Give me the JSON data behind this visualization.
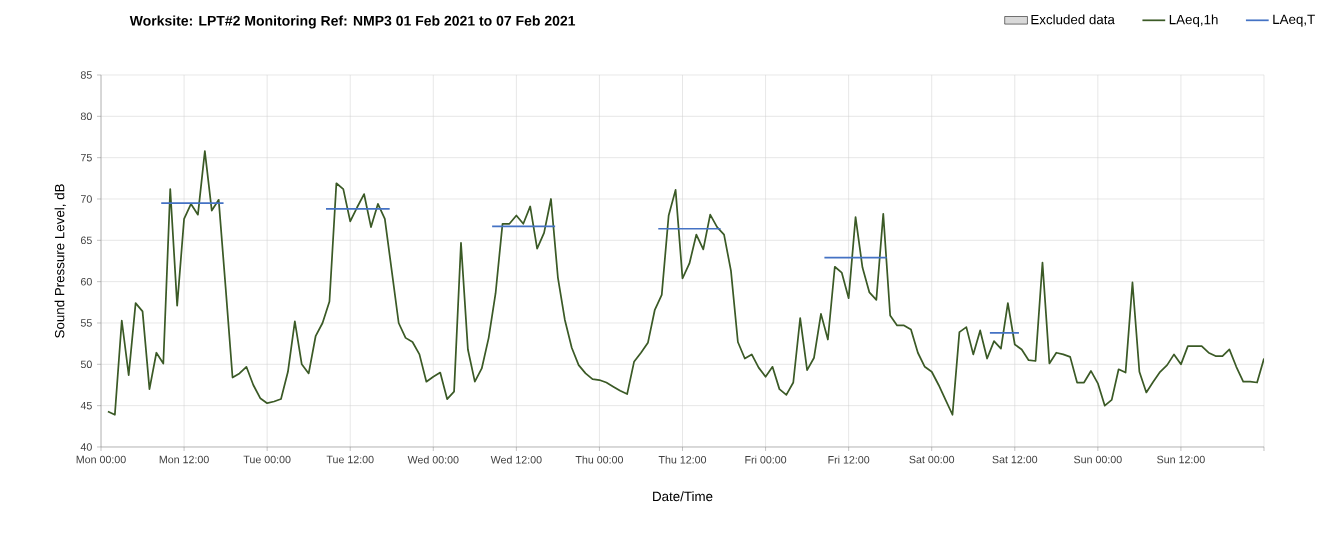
{
  "chart_data": {
    "type": "line",
    "title": "Worksite: LPT#2   Monitoring Ref: NMP3   01 Feb 2021 to 07 Feb 2021",
    "xlabel": "Date/Time",
    "ylabel": "Sound Pressure Level, dB",
    "x": [
      "2021-02-01T01:00",
      "2021-02-01T02:00",
      "2021-02-01T03:00",
      "2021-02-01T04:00",
      "2021-02-01T05:00",
      "2021-02-01T06:00",
      "2021-02-01T07:00",
      "2021-02-01T08:00",
      "2021-02-01T09:00",
      "2021-02-01T10:00",
      "2021-02-01T11:00",
      "2021-02-01T12:00",
      "2021-02-01T13:00",
      "2021-02-01T14:00",
      "2021-02-01T15:00",
      "2021-02-01T16:00",
      "2021-02-01T17:00",
      "2021-02-01T18:00",
      "2021-02-01T19:00",
      "2021-02-01T20:00",
      "2021-02-01T21:00",
      "2021-02-01T22:00",
      "2021-02-01T23:00",
      "2021-02-02T00:00",
      "2021-02-02T01:00",
      "2021-02-02T02:00",
      "2021-02-02T03:00",
      "2021-02-02T04:00",
      "2021-02-02T05:00",
      "2021-02-02T06:00",
      "2021-02-02T07:00",
      "2021-02-02T08:00",
      "2021-02-02T09:00",
      "2021-02-02T10:00",
      "2021-02-02T11:00",
      "2021-02-02T12:00",
      "2021-02-02T13:00",
      "2021-02-02T14:00",
      "2021-02-02T15:00",
      "2021-02-02T16:00",
      "2021-02-02T17:00",
      "2021-02-02T18:00",
      "2021-02-02T19:00",
      "2021-02-02T20:00",
      "2021-02-02T21:00",
      "2021-02-02T22:00",
      "2021-02-02T23:00",
      "2021-02-03T00:00",
      "2021-02-03T01:00",
      "2021-02-03T02:00",
      "2021-02-03T03:00",
      "2021-02-03T04:00",
      "2021-02-03T05:00",
      "2021-02-03T06:00",
      "2021-02-03T07:00",
      "2021-02-03T08:00",
      "2021-02-03T09:00",
      "2021-02-03T10:00",
      "2021-02-03T11:00",
      "2021-02-03T12:00",
      "2021-02-03T13:00",
      "2021-02-03T14:00",
      "2021-02-03T15:00",
      "2021-02-03T16:00",
      "2021-02-03T17:00",
      "2021-02-03T18:00",
      "2021-02-03T19:00",
      "2021-02-03T20:00",
      "2021-02-03T21:00",
      "2021-02-03T22:00",
      "2021-02-03T23:00",
      "2021-02-04T00:00",
      "2021-02-04T01:00",
      "2021-02-04T02:00",
      "2021-02-04T03:00",
      "2021-02-04T04:00",
      "2021-02-04T05:00",
      "2021-02-04T06:00",
      "2021-02-04T07:00",
      "2021-02-04T08:00",
      "2021-02-04T09:00",
      "2021-02-04T10:00",
      "2021-02-04T11:00",
      "2021-02-04T12:00",
      "2021-02-04T13:00",
      "2021-02-04T14:00",
      "2021-02-04T15:00",
      "2021-02-04T16:00",
      "2021-02-04T17:00",
      "2021-02-04T18:00",
      "2021-02-04T19:00",
      "2021-02-04T20:00",
      "2021-02-04T21:00",
      "2021-02-04T22:00",
      "2021-02-04T23:00",
      "2021-02-05T00:00",
      "2021-02-05T01:00",
      "2021-02-05T02:00",
      "2021-02-05T03:00",
      "2021-02-05T04:00",
      "2021-02-05T05:00",
      "2021-02-05T06:00",
      "2021-02-05T07:00",
      "2021-02-05T08:00",
      "2021-02-05T09:00",
      "2021-02-05T10:00",
      "2021-02-05T11:00",
      "2021-02-05T12:00",
      "2021-02-05T13:00",
      "2021-02-05T14:00",
      "2021-02-05T15:00",
      "2021-02-05T16:00",
      "2021-02-05T17:00",
      "2021-02-05T18:00",
      "2021-02-05T19:00",
      "2021-02-05T20:00",
      "2021-02-05T21:00",
      "2021-02-05T22:00",
      "2021-02-05T23:00",
      "2021-02-06T00:00",
      "2021-02-06T01:00",
      "2021-02-06T02:00",
      "2021-02-06T03:00",
      "2021-02-06T04:00",
      "2021-02-06T05:00",
      "2021-02-06T06:00",
      "2021-02-06T07:00",
      "2021-02-06T08:00",
      "2021-02-06T09:00",
      "2021-02-06T10:00",
      "2021-02-06T11:00",
      "2021-02-06T12:00",
      "2021-02-06T13:00",
      "2021-02-06T14:00",
      "2021-02-06T15:00",
      "2021-02-06T16:00",
      "2021-02-06T17:00",
      "2021-02-06T18:00",
      "2021-02-06T19:00",
      "2021-02-06T20:00",
      "2021-02-06T21:00",
      "2021-02-06T22:00",
      "2021-02-06T23:00",
      "2021-02-07T00:00",
      "2021-02-07T01:00",
      "2021-02-07T02:00",
      "2021-02-07T03:00",
      "2021-02-07T04:00",
      "2021-02-07T05:00",
      "2021-02-07T06:00",
      "2021-02-07T07:00",
      "2021-02-07T08:00",
      "2021-02-07T09:00",
      "2021-02-07T10:00",
      "2021-02-07T11:00",
      "2021-02-07T12:00",
      "2021-02-07T13:00",
      "2021-02-07T14:00",
      "2021-02-07T15:00",
      "2021-02-07T16:00",
      "2021-02-07T17:00",
      "2021-02-07T18:00",
      "2021-02-07T19:00",
      "2021-02-07T20:00",
      "2021-02-07T21:00",
      "2021-02-07T22:00",
      "2021-02-07T23:00",
      "2021-02-08T00:00"
    ],
    "series": [
      {
        "name": "Excluded data",
        "type": "area",
        "color": "#d9d9d9",
        "values": [
          null,
          null,
          null,
          null,
          null,
          null,
          null,
          null,
          null,
          null,
          null,
          null,
          null,
          null,
          null,
          null,
          null,
          null,
          null,
          null,
          null,
          null,
          null,
          null,
          null,
          null,
          null,
          null,
          null,
          null,
          null,
          null,
          null,
          null,
          null,
          null,
          null,
          null,
          null,
          null,
          null,
          null,
          null,
          null,
          null,
          null,
          null,
          null,
          null,
          null,
          null,
          null,
          null,
          null,
          null,
          null,
          null,
          null,
          null,
          null,
          null,
          null,
          null,
          null,
          null,
          null,
          null,
          null,
          null,
          null,
          null,
          null,
          null,
          null,
          null,
          null,
          null,
          null,
          null,
          null,
          null,
          null,
          null,
          null,
          null,
          null,
          null,
          null,
          null,
          null,
          null,
          null,
          null,
          null,
          null,
          null,
          null,
          null,
          null,
          null,
          null,
          null,
          null,
          null,
          null,
          null,
          null,
          null,
          null,
          null,
          null,
          null,
          null,
          null,
          null,
          null,
          null,
          null,
          null,
          null,
          null,
          null,
          null,
          null,
          null,
          null,
          null,
          null,
          null,
          null,
          null,
          null,
          null,
          null,
          null,
          null,
          null,
          null,
          null,
          null,
          null,
          null,
          null,
          null,
          null,
          null,
          null,
          null,
          null,
          null,
          null,
          null,
          null,
          null,
          null,
          null,
          null,
          null,
          null,
          null,
          null,
          null,
          null,
          null,
          null,
          null,
          null,
          null
        ]
      },
      {
        "name": "LAeq,1h",
        "color": "#3b5a26",
        "values": [
          44.3,
          43.9,
          55.3,
          48.7,
          57.4,
          56.4,
          47.0,
          51.4,
          50.1,
          71.2,
          57.1,
          67.6,
          69.4,
          68.1,
          75.8,
          68.6,
          69.9,
          59.3,
          48.4,
          48.9,
          49.7,
          47.5,
          45.9,
          45.3,
          45.5,
          45.8,
          49.1,
          55.2,
          50.0,
          48.9,
          53.4,
          55.0,
          57.6,
          71.9,
          71.2,
          67.3,
          69.0,
          70.6,
          66.6,
          69.4,
          67.6,
          61.3,
          55.0,
          53.2,
          52.7,
          51.2,
          47.9,
          48.5,
          49.0,
          45.8,
          46.7,
          64.7,
          51.8,
          47.9,
          49.5,
          53.2,
          58.6,
          67.0,
          67.0,
          68.0,
          67.0,
          69.1,
          64.0,
          65.9,
          70.0,
          60.5,
          55.4,
          52.0,
          49.9,
          48.9,
          48.2,
          48.1,
          47.8,
          47.3,
          46.8,
          46.4,
          50.3,
          51.4,
          52.6,
          56.6,
          58.4,
          68.0,
          71.1,
          60.4,
          62.2,
          65.7,
          63.9,
          68.1,
          66.6,
          65.7,
          61.3,
          52.7,
          50.7,
          51.2,
          49.6,
          48.5,
          49.7,
          47.0,
          46.3,
          47.8,
          55.6,
          49.3,
          50.8,
          56.1,
          53.0,
          61.8,
          61.1,
          58.0,
          67.8,
          61.7,
          58.7,
          57.8,
          68.2,
          55.9,
          54.7,
          54.7,
          54.2,
          51.4,
          49.7,
          49.1,
          47.5,
          45.7,
          43.9,
          53.9,
          54.5,
          51.2,
          54.1,
          50.7,
          52.8,
          51.9,
          57.4,
          52.4,
          51.8,
          50.5,
          50.4,
          62.3,
          50.1,
          51.4,
          51.2,
          50.9,
          47.8,
          47.8,
          49.2,
          47.7,
          45.0,
          45.7,
          49.4,
          49.0,
          59.9,
          49.1,
          46.6,
          47.9,
          49.1,
          49.9,
          51.2,
          50.0,
          52.2,
          52.2,
          52.2,
          51.4,
          51.0,
          51.0,
          51.8,
          49.7,
          47.9,
          47.9,
          47.8,
          50.7
        ]
      },
      {
        "name": "LAeq,T",
        "type": "line",
        "color": "#4472c4",
        "x": [
          "2021-02-01T08:42",
          "2021-02-01T17:42",
          "2021-02-02T01:00",
          "2021-02-02T08:30",
          "2021-02-02T17:42",
          "2021-02-03T01:00",
          "2021-02-03T08:30",
          "2021-02-03T17:36",
          "2021-02-04T01:00",
          "2021-02-04T08:30",
          "2021-02-04T17:30",
          "2021-02-05T01:00",
          "2021-02-05T08:30",
          "2021-02-05T17:30",
          "2021-02-06T01:00",
          "2021-02-06T08:24",
          "2021-02-06T12:36"
        ],
        "values": [
          69.5,
          69.5,
          null,
          68.8,
          68.8,
          null,
          66.7,
          66.7,
          null,
          66.4,
          66.4,
          null,
          62.9,
          62.9,
          null,
          53.8,
          53.8
        ]
      }
    ],
    "xlim": [
      "2021-02-01T00:00",
      "2021-02-08T00:00"
    ],
    "xticks": [
      {
        "value": "2021-02-01T00:00",
        "label": "Mon 00:00"
      },
      {
        "value": "2021-02-01T12:00",
        "label": "Mon 12:00"
      },
      {
        "value": "2021-02-02T00:00",
        "label": "Tue 00:00"
      },
      {
        "value": "2021-02-02T12:00",
        "label": "Tue 12:00"
      },
      {
        "value": "2021-02-03T00:00",
        "label": "Wed 00:00"
      },
      {
        "value": "2021-02-03T12:00",
        "label": "Wed 12:00"
      },
      {
        "value": "2021-02-04T00:00",
        "label": "Thu 00:00"
      },
      {
        "value": "2021-02-04T12:00",
        "label": "Thu 12:00"
      },
      {
        "value": "2021-02-05T00:00",
        "label": "Fri 00:00"
      },
      {
        "value": "2021-02-05T12:00",
        "label": "Fri 12:00"
      },
      {
        "value": "2021-02-06T00:00",
        "label": "Sat 00:00"
      },
      {
        "value": "2021-02-06T12:00",
        "label": "Sat 12:00"
      },
      {
        "value": "2021-02-07T00:00",
        "label": "Sun 00:00"
      },
      {
        "value": "2021-02-07T12:00",
        "label": "Sun 12:00"
      },
      {
        "value": "2021-02-08T00:00",
        "label": null
      }
    ],
    "ylim": [
      40,
      85
    ],
    "yticks": [
      40,
      45,
      50,
      55,
      60,
      65,
      70,
      75,
      80,
      85
    ],
    "grid": true,
    "legend": "top right"
  }
}
